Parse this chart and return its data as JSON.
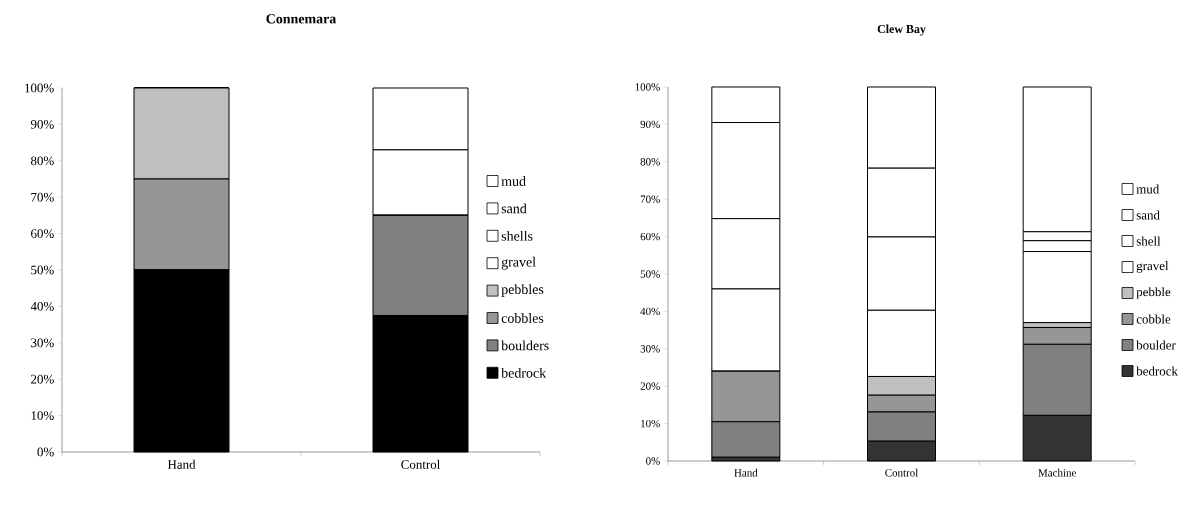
{
  "chart_data": [
    {
      "type": "bar",
      "title": "Connemara",
      "stacked": true,
      "legend": "right",
      "categories": [
        "Hand",
        "Control"
      ],
      "ylim": [
        0,
        100
      ],
      "yticks": [
        {
          "value": 0,
          "label": "0%"
        },
        {
          "value": 10,
          "label": "10%"
        },
        {
          "value": 20,
          "label": "20%"
        },
        {
          "value": 30,
          "label": "30%"
        },
        {
          "value": 40,
          "label": "40%"
        },
        {
          "value": 50,
          "label": "50%"
        },
        {
          "value": 60,
          "label": "60%"
        },
        {
          "value": 70,
          "label": "70%"
        },
        {
          "value": 80,
          "label": "80%"
        },
        {
          "value": 90,
          "label": "90%"
        },
        {
          "value": 100,
          "label": "100%"
        }
      ],
      "series": [
        {
          "name": "bedrock",
          "color": "#000000",
          "values": [
            50,
            37.5
          ]
        },
        {
          "name": "boulders",
          "color": "#808080",
          "values": [
            0,
            27.5
          ]
        },
        {
          "name": "cobbles",
          "color": "#969696",
          "values": [
            25,
            0
          ]
        },
        {
          "name": "pebbles",
          "color": "#c0c0c0",
          "values": [
            25,
            0
          ]
        },
        {
          "name": "gravel",
          "color": "#ffffff",
          "values": [
            0,
            0
          ]
        },
        {
          "name": "shells",
          "color": "#ffffff",
          "values": [
            0,
            0
          ]
        },
        {
          "name": "sand",
          "color": "#ffffff",
          "values": [
            0,
            18
          ]
        },
        {
          "name": "mud",
          "color": "#ffffff",
          "values": [
            0,
            17
          ]
        }
      ]
    },
    {
      "type": "bar",
      "title": "Clew Bay",
      "stacked": true,
      "legend": "right",
      "categories": [
        "Hand",
        "Control",
        "Machine"
      ],
      "ylim": [
        0,
        100
      ],
      "yticks": [
        {
          "value": 0,
          "label": "0%"
        },
        {
          "value": 10,
          "label": "10%"
        },
        {
          "value": 20,
          "label": "20%"
        },
        {
          "value": 30,
          "label": "30%"
        },
        {
          "value": 40,
          "label": "40%"
        },
        {
          "value": 50,
          "label": "50%"
        },
        {
          "value": 60,
          "label": "60%"
        },
        {
          "value": 70,
          "label": "70%"
        },
        {
          "value": 80,
          "label": "80%"
        },
        {
          "value": 90,
          "label": "90%"
        },
        {
          "value": 100,
          "label": "100%"
        }
      ],
      "series": [
        {
          "name": "bedrock",
          "color": "#333333",
          "values": [
            1,
            5.3,
            12.2
          ]
        },
        {
          "name": "boulder",
          "color": "#808080",
          "values": [
            9.5,
            7.8,
            19
          ]
        },
        {
          "name": "cobble",
          "color": "#969696",
          "values": [
            13.5,
            4.5,
            4.5
          ]
        },
        {
          "name": "pebble",
          "color": "#c0c0c0",
          "values": [
            0,
            5,
            1.3
          ]
        },
        {
          "name": "gravel",
          "color": "#ffffff",
          "values": [
            22,
            17.7,
            19
          ]
        },
        {
          "name": "shell",
          "color": "#ffffff",
          "values": [
            18.8,
            19.6,
            2.9
          ]
        },
        {
          "name": "sand",
          "color": "#ffffff",
          "values": [
            25.7,
            18.4,
            2.4
          ]
        },
        {
          "name": "mud",
          "color": "#ffffff",
          "values": [
            9.5,
            21.7,
            38.7
          ]
        }
      ]
    }
  ]
}
